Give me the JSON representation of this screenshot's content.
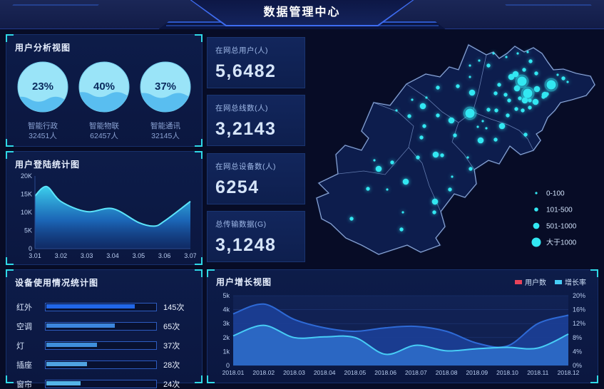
{
  "header": {
    "title": "数据管理中心"
  },
  "panels": {
    "user_analysis": {
      "title": "用户分析视图"
    },
    "login_stats": {
      "title": "用户登陆统计图"
    },
    "device_usage": {
      "title": "设备使用情况统计图"
    },
    "user_growth": {
      "title": "用户增长视图"
    }
  },
  "stat_cards": [
    {
      "label": "在网总用户(人)",
      "value": "5,6482"
    },
    {
      "label": "在网总线数(人)",
      "value": "3,2143"
    },
    {
      "label": "在网总设备数(人)",
      "value": "6254"
    },
    {
      "label": "总传输数据(G)",
      "value": "3,1248"
    }
  ],
  "map": {
    "legend": [
      {
        "label": "0-100",
        "r": 1.6
      },
      {
        "label": "101-500",
        "r": 2.8
      },
      {
        "label": "501-1000",
        "r": 4.4
      },
      {
        "label": "大于1000",
        "r": 6.5
      }
    ],
    "dots": {
      "large": [
        [
          302,
          69
        ],
        [
          310,
          86
        ],
        [
          343,
          74
        ],
        [
          229,
          114
        ]
      ],
      "medium": [
        [
          293,
          59
        ],
        [
          287,
          63
        ],
        [
          295,
          79
        ],
        [
          323,
          80
        ],
        [
          334,
          88
        ],
        [
          306,
          96
        ],
        [
          321,
          98
        ],
        [
          232,
          85
        ],
        [
          203,
          124
        ],
        [
          163,
          104
        ],
        [
          274,
          132
        ],
        [
          244,
          152
        ],
        [
          181,
          172
        ],
        [
          101,
          192
        ],
        [
          180,
          238
        ],
        [
          139,
          210
        ]
      ],
      "small": [
        [
          184,
          78
        ],
        [
          212,
          76
        ],
        [
          255,
          47
        ],
        [
          270,
          74
        ],
        [
          265,
          86
        ],
        [
          282,
          117
        ],
        [
          294,
          108
        ],
        [
          303,
          110
        ],
        [
          313,
          106
        ],
        [
          255,
          109
        ],
        [
          266,
          110
        ],
        [
          284,
          96
        ],
        [
          279,
          88
        ],
        [
          299,
          93
        ],
        [
          313,
          96
        ],
        [
          332,
          91
        ],
        [
          337,
          87
        ],
        [
          314,
          41
        ],
        [
          305,
          53
        ],
        [
          322,
          58
        ],
        [
          360,
          65
        ],
        [
          184,
          117
        ],
        [
          165,
          132
        ],
        [
          161,
          148
        ],
        [
          144,
          118
        ],
        [
          208,
          145
        ],
        [
          265,
          151
        ],
        [
          190,
          173
        ],
        [
          156,
          176
        ],
        [
          120,
          183
        ],
        [
          201,
          221
        ],
        [
          179,
          253
        ],
        [
          86,
          220
        ],
        [
          63,
          262
        ],
        [
          133,
          277
        ],
        [
          230,
          192
        ],
        [
          307,
          144
        ]
      ],
      "tiny": [
        [
          229,
          63
        ],
        [
          242,
          40
        ],
        [
          262,
          30
        ],
        [
          280,
          35
        ],
        [
          296,
          30
        ],
        [
          310,
          28
        ],
        [
          229,
          47
        ],
        [
          352,
          60
        ],
        [
          366,
          70
        ],
        [
          126,
          110
        ],
        [
          113,
          221
        ],
        [
          135,
          253
        ],
        [
          95,
          180
        ],
        [
          204,
          203
        ],
        [
          226,
          176
        ],
        [
          247,
          125
        ],
        [
          240,
          133
        ],
        [
          252,
          135
        ],
        [
          168,
          92
        ],
        [
          148,
          95
        ]
      ]
    }
  },
  "chart_data": [
    {
      "id": "user-analysis-gauges",
      "type": "pie",
      "title": "用户分析视图",
      "items": [
        {
          "label": "智能行政",
          "percent": 23,
          "count": "32451人"
        },
        {
          "label": "智能物联",
          "percent": 40,
          "count": "62457人"
        },
        {
          "label": "智能通讯",
          "percent": 37,
          "count": "32145人"
        }
      ],
      "colors": {
        "body": "#9ae4f8",
        "wave": "#55bcef",
        "text": "#0b2b5e"
      }
    },
    {
      "id": "login-area",
      "type": "area",
      "title": "用户登陆统计图",
      "x": [
        "3.01",
        "3.02",
        "3.03",
        "3.04",
        "3.05",
        "3.06",
        "3.07"
      ],
      "values_at_ticks": [
        14.5,
        13,
        10.2,
        11,
        7.2,
        7.6,
        13
      ],
      "curve_points": [
        [
          0,
          14.5
        ],
        [
          0.45,
          17.1
        ],
        [
          1,
          13
        ],
        [
          2,
          10.2
        ],
        [
          3,
          11
        ],
        [
          4,
          7.2
        ],
        [
          4.6,
          6.2
        ],
        [
          5,
          7.6
        ],
        [
          6,
          13
        ]
      ],
      "y_ticks": [
        "0",
        "5K",
        "10K",
        "15K",
        "20K"
      ],
      "ylim": [
        0,
        20
      ],
      "line_color": "#5ce4fa",
      "grid": false
    },
    {
      "id": "device-bars",
      "type": "bar",
      "title": "设备使用情况统计图",
      "categories": [
        "红外",
        "空调",
        "灯",
        "插座",
        "窗帘"
      ],
      "values": [
        145,
        65,
        37,
        28,
        24
      ],
      "unit": "次",
      "fill_percent": [
        80,
        62,
        46,
        37,
        31
      ],
      "bar_colors": [
        "#2166e8",
        "#3c86dd",
        "#3f8fdc",
        "#4fa3e2",
        "#54b4e8"
      ]
    },
    {
      "id": "growth",
      "type": "area",
      "title": "用户增长视图",
      "categories": [
        "2018.01",
        "2018.02",
        "2018.03",
        "2018.04",
        "2018.05",
        "2018.06",
        "2018.07",
        "2018.08",
        "2018.09",
        "2018.10",
        "2018.11",
        "2018.12"
      ],
      "series": [
        {
          "name": "用户数",
          "axis": "left",
          "swatch": "#e8435a",
          "line": "#2e6ad6",
          "fill": "#1c3f97",
          "values": [
            3.7,
            4.4,
            3.3,
            2.7,
            2.45,
            2.7,
            2.8,
            2.45,
            1.6,
            1.4,
            3.0,
            3.6
          ]
        },
        {
          "name": "增长率",
          "axis": "right",
          "swatch": "#47cdf6",
          "line": "#47cdf6",
          "fill": "#2d6cc9",
          "values": [
            8.5,
            11.5,
            8,
            8.2,
            8,
            3.2,
            5.8,
            4.2,
            4.8,
            5.2,
            5,
            9
          ]
        }
      ],
      "left_ticks": [
        "0",
        "1k",
        "2k",
        "3k",
        "4k",
        "5k"
      ],
      "right_ticks": [
        "0%",
        "4%",
        "8%",
        "12%",
        "16%",
        "20%"
      ],
      "left_lim": [
        0,
        5
      ],
      "right_lim": [
        0,
        20
      ],
      "legend_position": "top-right",
      "grid": true
    },
    {
      "id": "map-scatter",
      "type": "scatter",
      "title": "",
      "legend": [
        "0-100",
        "101-500",
        "501-1000",
        "大于1000"
      ],
      "dot_color": "#32e7f2"
    }
  ]
}
